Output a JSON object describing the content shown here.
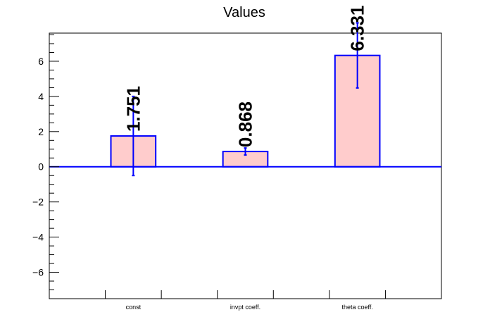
{
  "chart_data": {
    "type": "bar",
    "title": "Values",
    "xlabel": "",
    "ylabel": "",
    "categories": [
      "const",
      "invpt coeff.",
      "theta coeff."
    ],
    "values": [
      1.751,
      0.868,
      6.331
    ],
    "errors": [
      2.25,
      0.2,
      1.85
    ],
    "value_labels": [
      "1.751",
      "0.868",
      "6.331"
    ],
    "ylim": [
      -7.5,
      7.6
    ],
    "yticks": [
      -6,
      -4,
      -2,
      0,
      2,
      4,
      6
    ],
    "ytick_labels": [
      "−6",
      "−4",
      "−2",
      "0",
      "2",
      "4",
      "6"
    ],
    "grid": false,
    "legend": "none",
    "colors": {
      "bar_fill": "#ffcccc",
      "bar_stroke": "#0000ff",
      "error_bar": "#0000ff",
      "zero_line": "#0000ff",
      "axis": "#000000",
      "text": "#000000"
    }
  }
}
